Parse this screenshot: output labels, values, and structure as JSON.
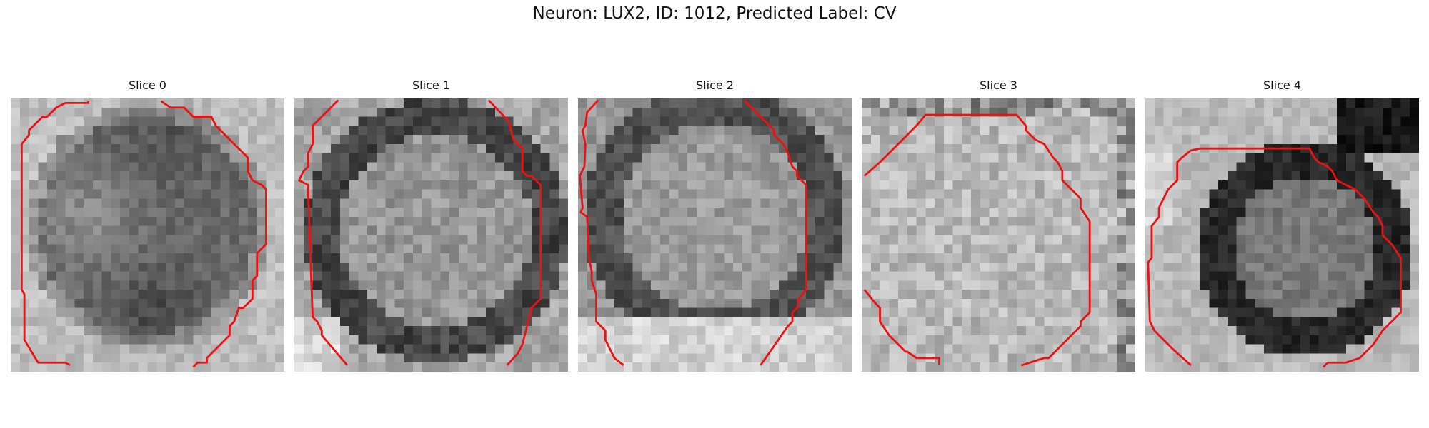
{
  "figure": {
    "title": "Neuron: LUX2, ID: 1012, Predicted Label: CV"
  },
  "panels": [
    {
      "title": "Slice 0"
    },
    {
      "title": "Slice 1"
    },
    {
      "title": "Slice 2"
    },
    {
      "title": "Slice 3"
    },
    {
      "title": "Slice 4"
    }
  ],
  "colors": {
    "contour": "#ee1111",
    "background": "#ffffff"
  },
  "colormap": "gray"
}
